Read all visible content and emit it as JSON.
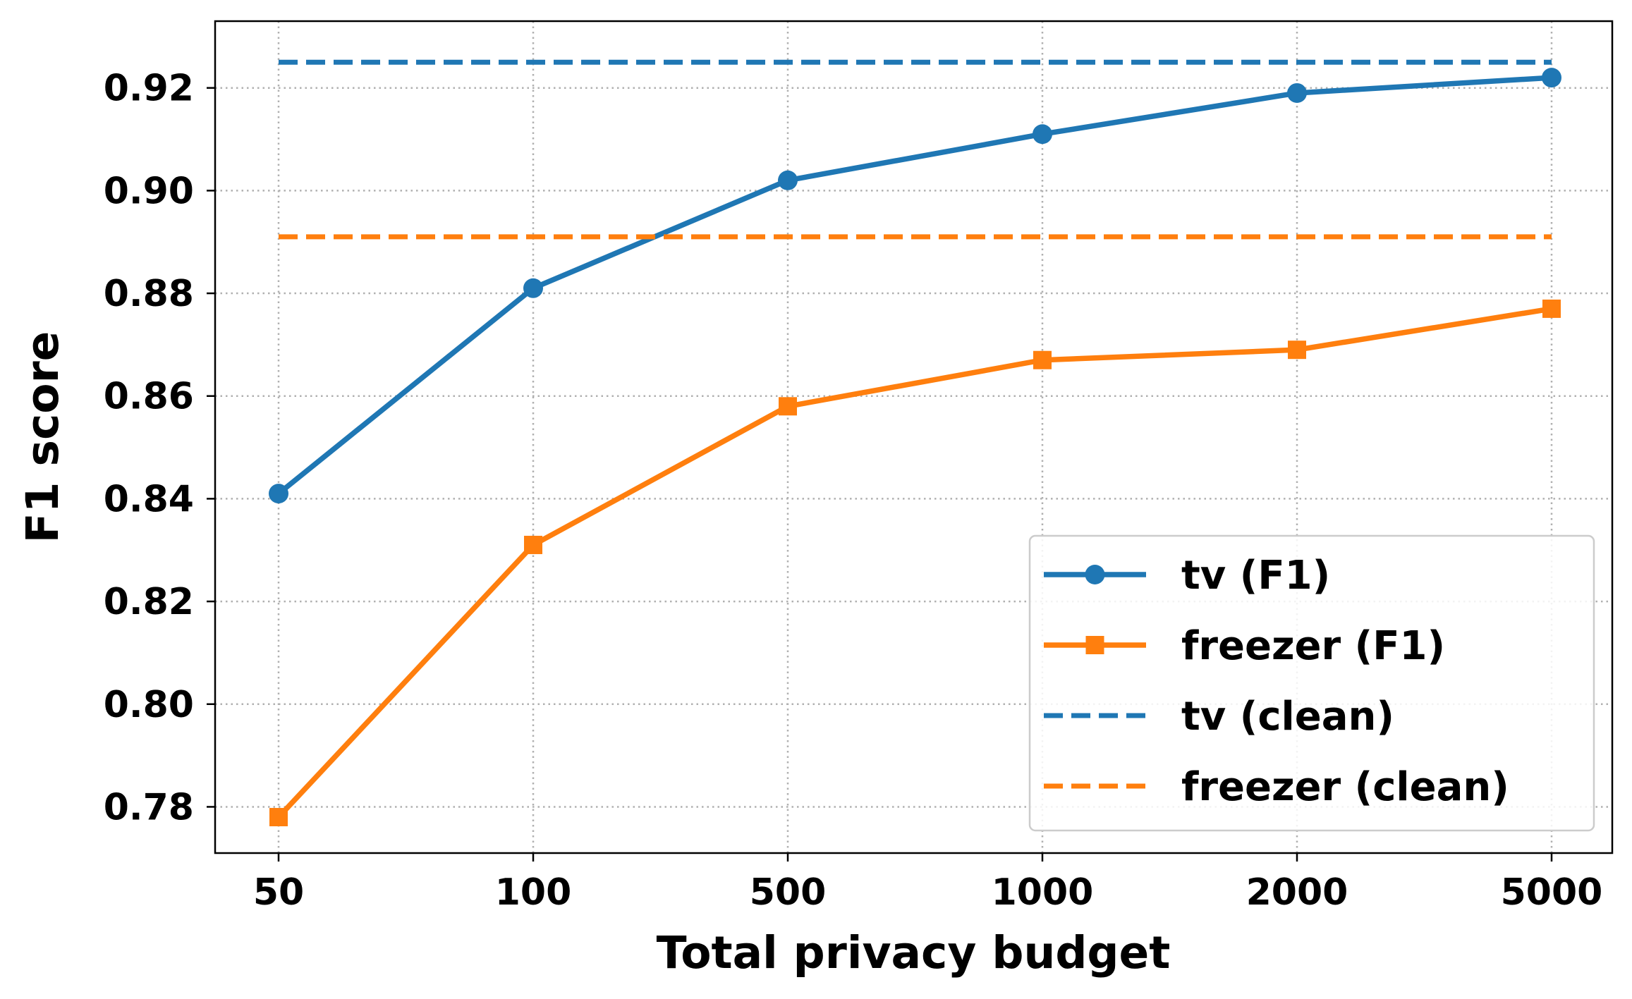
{
  "chart_data": {
    "type": "line",
    "title": "",
    "xlabel": "Total privacy budget",
    "ylabel": "F1 score",
    "categories": [
      "50",
      "100",
      "500",
      "1000",
      "2000",
      "5000"
    ],
    "yticks": [
      "0.78",
      "0.80",
      "0.82",
      "0.84",
      "0.86",
      "0.88",
      "0.90",
      "0.92"
    ],
    "ylim": [
      0.771,
      0.933
    ],
    "grid": true,
    "legend_position": "lower-right",
    "series": [
      {
        "name": "tv (F1)",
        "values": [
          0.841,
          0.881,
          0.902,
          0.911,
          0.919,
          0.922
        ],
        "color": "#1f77b4",
        "marker": "circle",
        "style": "solid"
      },
      {
        "name": "freezer (F1)",
        "values": [
          0.778,
          0.831,
          0.858,
          0.867,
          0.869,
          0.877
        ],
        "color": "#ff7f0e",
        "marker": "square",
        "style": "solid"
      },
      {
        "name": "tv (clean)",
        "value": 0.925,
        "color": "#1f77b4",
        "marker": "none",
        "style": "dashed"
      },
      {
        "name": "freezer (clean)",
        "value": 0.891,
        "color": "#ff7f0e",
        "marker": "none",
        "style": "dashed"
      }
    ]
  }
}
